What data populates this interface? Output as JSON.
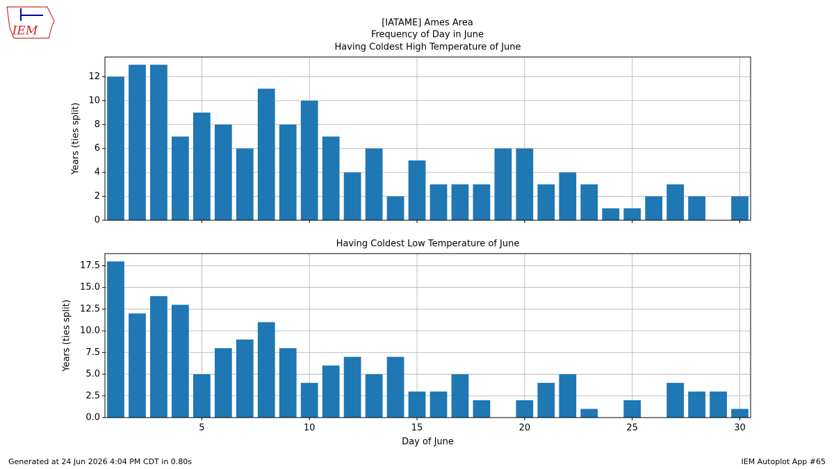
{
  "title": "[IATAME] Ames Area",
  "subtitle": "Frequency of Day in June",
  "logo": "IEM",
  "footer_left": "Generated at 24 Jun 2026 4:04 PM CDT in 0.80s",
  "footer_right": "IEM Autoplot App #65",
  "chart_data": [
    {
      "type": "bar",
      "title": "Having Coldest High Temperature of June",
      "y_label": "Years (ties split)",
      "x": [
        1,
        2,
        3,
        4,
        5,
        6,
        7,
        8,
        9,
        10,
        11,
        12,
        13,
        14,
        15,
        16,
        17,
        18,
        19,
        20,
        21,
        22,
        23,
        24,
        25,
        26,
        27,
        28,
        29,
        30
      ],
      "values": [
        12,
        13,
        13,
        7,
        9,
        8,
        6,
        11,
        8,
        10,
        7,
        4,
        6,
        2,
        5,
        3,
        3,
        3,
        6,
        6,
        3,
        4,
        3,
        1,
        1,
        2,
        3,
        2,
        0,
        2
      ],
      "color": "#1f77b4",
      "xlim": [
        0.5,
        30.5
      ],
      "xticks": [
        5,
        10,
        15,
        20,
        25,
        30
      ],
      "ylim": [
        0,
        13.65
      ],
      "yticks": [
        0,
        2,
        4,
        6,
        8,
        10,
        12
      ],
      "grid": true
    },
    {
      "type": "bar",
      "title": "Having Coldest Low Temperature of June",
      "y_label": "Years (ties split)",
      "x_label": "Day of June",
      "x": [
        1,
        2,
        3,
        4,
        5,
        6,
        7,
        8,
        9,
        10,
        11,
        12,
        13,
        14,
        15,
        16,
        17,
        18,
        19,
        20,
        21,
        22,
        23,
        24,
        25,
        26,
        27,
        28,
        29,
        30
      ],
      "values": [
        18,
        12,
        14,
        13,
        5,
        8,
        9,
        11,
        8,
        4,
        6,
        7,
        5,
        7,
        3,
        3,
        5,
        2,
        0,
        2,
        4,
        5,
        1,
        0,
        2,
        0,
        4,
        3,
        3,
        1
      ],
      "color": "#1f77b4",
      "xlim": [
        0.5,
        30.5
      ],
      "xticks": [
        5,
        10,
        15,
        20,
        25,
        30
      ],
      "ylim": [
        0,
        18.9
      ],
      "yticks": [
        {
          "value": 0,
          "label": "0.0"
        },
        {
          "value": 2.5,
          "label": "2.5"
        },
        {
          "value": 5,
          "label": "5.0"
        },
        {
          "value": 7.5,
          "label": "7.5"
        },
        {
          "value": 10,
          "label": "10.0"
        },
        {
          "value": 12.5,
          "label": "12.5"
        },
        {
          "value": 15,
          "label": "15.0"
        },
        {
          "value": 17.5,
          "label": "17.5"
        }
      ],
      "grid": true
    }
  ]
}
